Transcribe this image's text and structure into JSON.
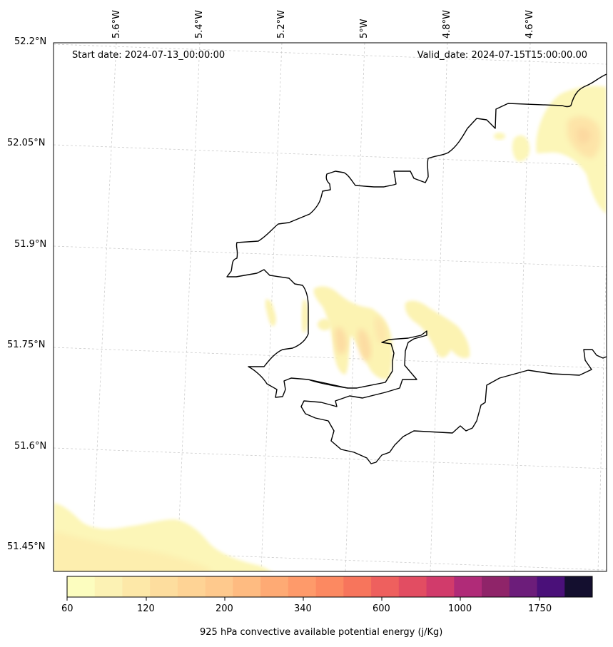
{
  "header": {
    "start_date": "Start date: 2024-07-13_00:00:00",
    "valid_date": "Valid_date: 2024-07-15T15:00:00.00"
  },
  "map": {
    "region": "Pembrokeshire coast, Wales",
    "lat_labels": [
      "52.2°N",
      "52.05°N",
      "51.9°N",
      "51.75°N",
      "51.6°N",
      "51.45°N"
    ],
    "lon_labels": [
      "5.6°W",
      "5.4°W",
      "5.2°W",
      "5°W",
      "4.8°W",
      "4.6°W"
    ],
    "field": "925 hPa convective available potential energy",
    "grid_style": "dashed light gray",
    "coastline_color": "#000000"
  },
  "colorbar": {
    "label": "925 hPa convective available potential energy (j/Kg)",
    "tick_labels": [
      "60",
      "120",
      "200",
      "340",
      "600",
      "1000",
      "1750"
    ],
    "colormap": "magma_r",
    "colors": [
      "#fcfdbf",
      "#fcf2b4",
      "#fde8a8",
      "#fddd9e",
      "#fed395",
      "#fec98d",
      "#febb81",
      "#feaa74",
      "#fe9a6a",
      "#fc8961",
      "#f7755c",
      "#ee605e",
      "#e24d62",
      "#d13b6b",
      "#b02b78",
      "#8f2469",
      "#6c1d7a",
      "#4a1079",
      "#140f2f"
    ]
  }
}
